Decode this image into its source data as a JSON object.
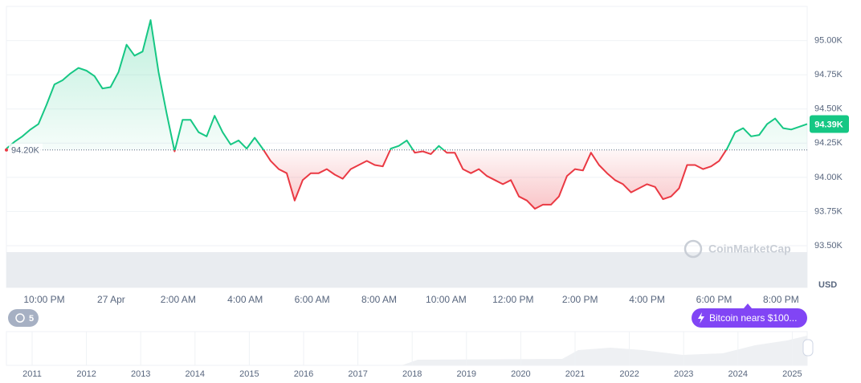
{
  "chart_data": {
    "type": "line",
    "values": [
      94210,
      94260,
      94300,
      94350,
      94390,
      94530,
      94680,
      94710,
      94760,
      94800,
      94780,
      94740,
      94650,
      94660,
      94770,
      94970,
      94890,
      94920,
      95150,
      94770,
      94470,
      94190,
      94420,
      94420,
      94330,
      94300,
      94450,
      94330,
      94240,
      94270,
      94210,
      94290,
      94210,
      94120,
      94060,
      94030,
      93830,
      93980,
      94030,
      94030,
      94060,
      94020,
      93990,
      94060,
      94090,
      94120,
      94090,
      94080,
      94210,
      94230,
      94270,
      94180,
      94190,
      94170,
      94230,
      94180,
      94180,
      94060,
      94030,
      94060,
      94010,
      93980,
      93950,
      93980,
      93860,
      93830,
      93770,
      93800,
      93800,
      93860,
      94010,
      94060,
      94050,
      94180,
      94090,
      94030,
      93980,
      93950,
      93890,
      93920,
      93950,
      93930,
      93840,
      93860,
      93920,
      94090,
      94090,
      94060,
      94080,
      94120,
      94210,
      94330,
      94360,
      94300,
      94310,
      94390,
      94430,
      94360,
      94350,
      94370,
      94390
    ],
    "color_up": "#16c784",
    "color_down": "#ea3943",
    "baseline": {
      "value": 94200,
      "label": "94.20K"
    },
    "last": {
      "value": 94390,
      "label": "94.39K"
    },
    "ylim": [
      93500,
      95250
    ],
    "yticks": [
      {
        "value": 93500,
        "label": "93.50K"
      },
      {
        "value": 93750,
        "label": "93.75K"
      },
      {
        "value": 94000,
        "label": "94.00K"
      },
      {
        "value": 94250,
        "label": "94.25K"
      },
      {
        "value": 94500,
        "label": "94.50K"
      },
      {
        "value": 94750,
        "label": "94.75K"
      },
      {
        "value": 95000,
        "label": "95.00K"
      }
    ],
    "grid": true,
    "unit": "USD",
    "x_tick_labels": [
      "10:00 PM",
      "27 Apr",
      "2:00 AM",
      "4:00 AM",
      "6:00 AM",
      "8:00 AM",
      "10:00 AM",
      "12:00 PM",
      "2:00 PM",
      "4:00 PM",
      "6:00 PM",
      "8:00 PM"
    ],
    "navigator_years": [
      "2011",
      "2012",
      "2013",
      "2014",
      "2015",
      "2016",
      "2017",
      "2018",
      "2019",
      "2020",
      "2021",
      "2022",
      "2023",
      "2024",
      "2025"
    ],
    "history_count": 5,
    "news": "Bitcoin nears $100...",
    "watermark": "CoinMarketCap"
  }
}
